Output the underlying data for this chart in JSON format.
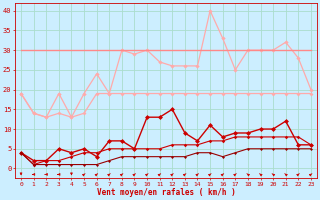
{
  "x": [
    0,
    1,
    2,
    3,
    4,
    5,
    6,
    7,
    8,
    9,
    10,
    11,
    12,
    13,
    14,
    15,
    16,
    17,
    18,
    19,
    20,
    21,
    22,
    23
  ],
  "bg_color": "#cceeff",
  "grid_color": "#aaddcc",
  "xlabel": "Vent moyen/en rafales ( km/h )",
  "xlim": [
    -0.5,
    23.5
  ],
  "ylim": [
    -2.5,
    42
  ],
  "yticks": [
    0,
    5,
    10,
    15,
    20,
    25,
    30,
    35,
    40
  ],
  "series": [
    {
      "name": "rafales_max",
      "color": "#ffaaaa",
      "lw": 0.9,
      "ms": 2.2,
      "y": [
        19,
        14,
        13,
        19,
        13,
        19,
        24,
        19,
        30,
        29,
        30,
        27,
        26,
        26,
        26,
        40,
        33,
        25,
        30,
        30,
        30,
        32,
        28,
        20
      ]
    },
    {
      "name": "flat_30",
      "color": "#ff8888",
      "lw": 1.0,
      "ms": 0,
      "y": [
        30,
        30,
        30,
        30,
        30,
        30,
        30,
        30,
        30,
        30,
        30,
        30,
        30,
        30,
        30,
        30,
        30,
        30,
        30,
        30,
        30,
        30,
        30,
        30
      ]
    },
    {
      "name": "rafales_mean_rising",
      "color": "#ffaaaa",
      "lw": 0.9,
      "ms": 2.0,
      "y": [
        19,
        14,
        13,
        14,
        13,
        14,
        19,
        19,
        19,
        19,
        19,
        19,
        19,
        19,
        19,
        19,
        19,
        19,
        19,
        19,
        19,
        19,
        19,
        19
      ]
    },
    {
      "name": "vent_max",
      "color": "#cc0000",
      "lw": 1.0,
      "ms": 2.5,
      "y": [
        4,
        2,
        2,
        5,
        4,
        5,
        3,
        7,
        7,
        5,
        13,
        13,
        15,
        9,
        7,
        11,
        8,
        9,
        9,
        10,
        10,
        12,
        6,
        6
      ]
    },
    {
      "name": "vent_moyen",
      "color": "#cc0000",
      "lw": 0.8,
      "ms": 1.8,
      "y": [
        4,
        1,
        2,
        2,
        3,
        4,
        4,
        5,
        5,
        5,
        5,
        5,
        6,
        6,
        6,
        7,
        7,
        8,
        8,
        8,
        8,
        8,
        8,
        6
      ]
    },
    {
      "name": "vent_min",
      "color": "#990000",
      "lw": 0.8,
      "ms": 1.5,
      "y": [
        4,
        1,
        1,
        1,
        1,
        1,
        1,
        2,
        3,
        3,
        3,
        3,
        3,
        3,
        4,
        4,
        3,
        4,
        5,
        5,
        5,
        5,
        5,
        5
      ]
    }
  ],
  "arrow_angles": [
    180,
    270,
    270,
    270,
    180,
    45,
    45,
    45,
    45,
    45,
    45,
    45,
    45,
    45,
    45,
    45,
    45,
    45,
    315,
    315,
    315,
    315,
    45,
    45
  ]
}
